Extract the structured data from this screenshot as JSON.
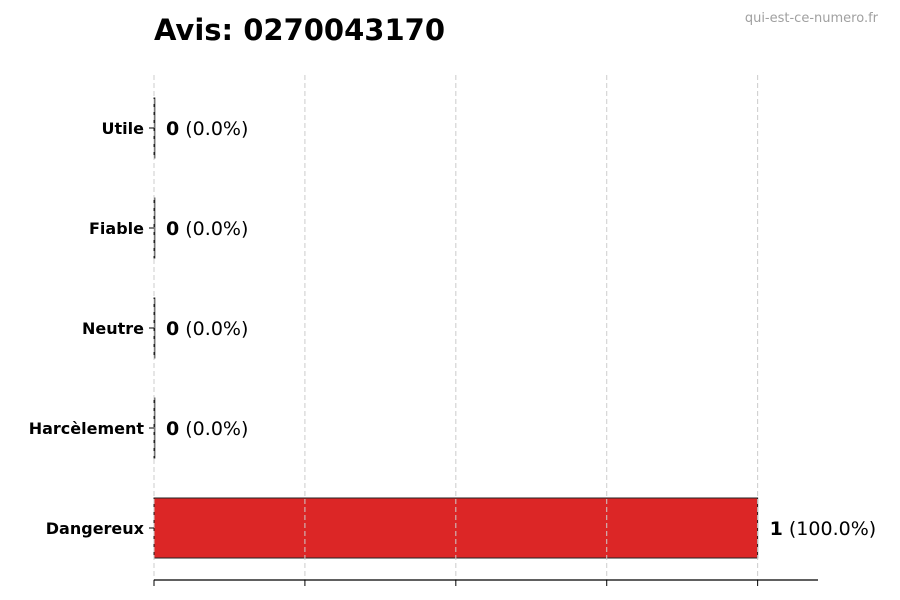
{
  "chart_data": {
    "type": "bar",
    "orientation": "horizontal",
    "title": "Avis: 0270043170",
    "watermark": "qui-est-ce-numero.fr",
    "categories": [
      "Utile",
      "Fiable",
      "Neutre",
      "Harcèlement",
      "Dangereux"
    ],
    "values": [
      0,
      0,
      0,
      0,
      1
    ],
    "value_labels": [
      "(0.0%)",
      "(0.0%)",
      "(0.0%)",
      "(0.0%)",
      "(100.0%)"
    ],
    "colors": [
      "#dc2626",
      "#dc2626",
      "#dc2626",
      "#dc2626",
      "#dc2626"
    ],
    "xlim": [
      0,
      1.1
    ],
    "xticks": [
      0,
      0.25,
      0.5,
      0.75,
      1.0
    ],
    "xtick_labels_shown": false,
    "grid": "x, dashed",
    "xlabel": "",
    "ylabel": ""
  }
}
